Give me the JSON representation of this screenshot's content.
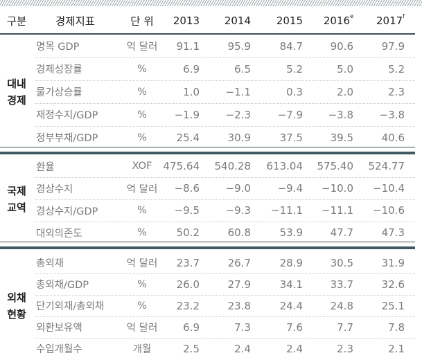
{
  "header": {
    "group": "구분",
    "indicator": "경제지표",
    "unit": "단 위",
    "years": [
      {
        "year": "2013",
        "mark": ""
      },
      {
        "year": "2014",
        "mark": ""
      },
      {
        "year": "2015",
        "mark": ""
      },
      {
        "year": "2016",
        "mark": "e"
      },
      {
        "year": "2017",
        "mark": "f"
      }
    ]
  },
  "sections": [
    {
      "label": [
        "대내",
        "경제"
      ],
      "rows": [
        {
          "indicator": "명목 GDP",
          "unit": "억 달러",
          "values": [
            "91.1",
            "95.9",
            "84.7",
            "90.6",
            "97.9"
          ]
        },
        {
          "indicator": "경제성장률",
          "unit": "%",
          "values": [
            "6.9",
            "6.5",
            "5.2",
            "5.0",
            "5.2"
          ]
        },
        {
          "indicator": "물가상승률",
          "unit": "%",
          "values": [
            "1.0",
            "−1.1",
            "0.3",
            "2.0",
            "2.3"
          ]
        },
        {
          "indicator": "재정수지/GDP",
          "unit": "%",
          "values": [
            "−1.9",
            "−2.3",
            "−7.9",
            "−3.8",
            "−3.8"
          ]
        },
        {
          "indicator": "정부부채/GDP",
          "unit": "%",
          "values": [
            "25.4",
            "30.9",
            "37.5",
            "39.5",
            "40.6"
          ]
        }
      ]
    },
    {
      "label": [
        "국제",
        "교역"
      ],
      "rows": [
        {
          "indicator": "환율",
          "unit": "XOF",
          "values": [
            "475.64",
            "540.28",
            "613.04",
            "575.40",
            "524.77"
          ]
        },
        {
          "indicator": "경상수지",
          "unit": "억 달러",
          "values": [
            "−8.6",
            "−9.0",
            "−9.4",
            "−10.0",
            "−10.4"
          ]
        },
        {
          "indicator": "경상수지/GDP",
          "unit": "%",
          "values": [
            "−9.5",
            "−9.3",
            "−11.1",
            "−11.1",
            "−10.6"
          ]
        },
        {
          "indicator": "대외의존도",
          "unit": "%",
          "values": [
            "50.2",
            "60.8",
            "53.9",
            "47.7",
            "47.3"
          ]
        }
      ]
    },
    {
      "label": [
        "외채",
        "현황"
      ],
      "rows": [
        {
          "indicator": "총외채",
          "unit": "억 달러",
          "values": [
            "23.7",
            "26.7",
            "28.9",
            "30.5",
            "31.9"
          ]
        },
        {
          "indicator": "총외채/GDP",
          "unit": "%",
          "values": [
            "26.0",
            "27.9",
            "34.1",
            "33.7",
            "32.6"
          ]
        },
        {
          "indicator": "단기외채/총외채",
          "unit": "%",
          "values": [
            "23.2",
            "23.8",
            "24.4",
            "24.8",
            "25.1"
          ]
        },
        {
          "indicator": "외환보유액",
          "unit": "억 달러",
          "values": [
            "6.9",
            "7.3",
            "7.6",
            "7.7",
            "7.8"
          ]
        },
        {
          "indicator": "수입개월수",
          "unit": "개월",
          "values": [
            "2.5",
            "2.4",
            "2.4",
            "2.3",
            "2.1"
          ]
        }
      ]
    }
  ]
}
